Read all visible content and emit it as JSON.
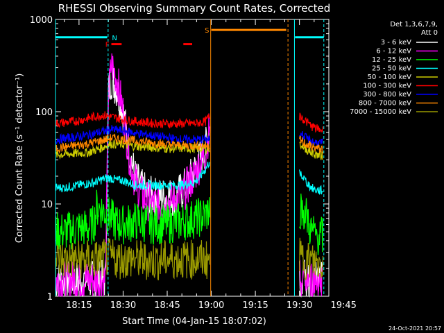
{
  "chart_data": {
    "type": "line",
    "title": "RHESSI Observing Summary Count Rates, Corrected",
    "xlabel": "Start Time (04-Jan-15 18:07:02)",
    "ylabel": "Corrected Count Rate (s⁻¹ detector⁻¹)",
    "ylog": true,
    "ylim": [
      1,
      1000
    ],
    "xlim_minutes": [
      7.0,
      100.0
    ],
    "x_ticks": [
      {
        "minutes": 15,
        "label": "18:15"
      },
      {
        "minutes": 30,
        "label": "18:30"
      },
      {
        "minutes": 45,
        "label": "18:45"
      },
      {
        "minutes": 60,
        "label": "19:00"
      },
      {
        "minutes": 75,
        "label": "19:15"
      },
      {
        "minutes": 90,
        "label": "19:30"
      },
      {
        "minutes": 105,
        "label": "19:45"
      }
    ],
    "y_ticks": [
      {
        "value": 1,
        "label": "1"
      },
      {
        "value": 10,
        "label": "10"
      },
      {
        "value": 100,
        "label": "100"
      },
      {
        "value": 1000,
        "label": "1000"
      }
    ],
    "timestamp": "24-Oct-2021 20:57",
    "legend_placement": "top-right",
    "legend_header": [
      "Det 1,3,6,7,9,",
      "Att 0"
    ],
    "series": [
      {
        "name": "3 - 6 keV",
        "color": "#ffffff",
        "x": [
          7,
          15,
          20,
          24,
          25,
          26,
          28,
          30,
          32,
          34,
          36,
          38,
          40,
          42,
          44,
          46,
          48,
          50,
          52,
          54,
          56,
          58,
          59,
          59.5
        ],
        "y": [
          1.5,
          1.5,
          1.5,
          1.5,
          160,
          230,
          170,
          100,
          40,
          20,
          15,
          13,
          12,
          12,
          12,
          12,
          12,
          14,
          17,
          22,
          30,
          40,
          55,
          80
        ]
      },
      {
        "name": "6 - 12 keV",
        "color": "#ff00ff",
        "x": [
          7,
          15,
          20,
          24,
          25,
          26,
          28,
          30,
          32,
          34,
          36,
          38,
          40,
          42,
          44,
          46,
          48,
          50,
          52,
          54,
          56,
          58,
          59,
          59.5
        ],
        "y": [
          1.5,
          1.5,
          1.5,
          1.5,
          150,
          330,
          220,
          100,
          35,
          18,
          13,
          11,
          10,
          10,
          10,
          11,
          11,
          12,
          16,
          20,
          27,
          35,
          55,
          75
        ]
      },
      {
        "name": "12 - 25 keV",
        "color": "#00ff00",
        "x": [
          7,
          10,
          15,
          18,
          20,
          21,
          22,
          24,
          26,
          28,
          30,
          35,
          40,
          45,
          50,
          55,
          58,
          59.5
        ],
        "y": [
          5,
          5,
          5.5,
          5.5,
          6,
          9,
          9,
          8,
          7,
          6,
          6,
          6.5,
          6,
          6,
          6.5,
          7,
          7.5,
          9
        ]
      },
      {
        "name": "25 - 50 keV",
        "color": "#00ffff",
        "x": [
          7,
          10,
          15,
          20,
          22,
          24,
          26,
          28,
          30,
          32,
          34,
          36,
          40,
          45,
          50,
          54,
          56,
          58,
          59.5
        ],
        "y": [
          15,
          15,
          16,
          17,
          18,
          19,
          19,
          18,
          18,
          17,
          16,
          16,
          16,
          16,
          16,
          17,
          19,
          24,
          29
        ]
      },
      {
        "name": "50 - 100 keV",
        "color": "#cccc00",
        "x": [
          7,
          12,
          18,
          22,
          26,
          30,
          35,
          40,
          45,
          50,
          55,
          59.5
        ],
        "y": [
          34,
          35,
          36,
          40,
          45,
          44,
          42,
          41,
          40,
          40,
          40,
          40
        ]
      },
      {
        "name": "100 - 300 keV",
        "color": "#ff0000",
        "x": [
          7,
          10,
          15,
          20,
          23,
          26,
          30,
          35,
          40,
          45,
          50,
          55,
          58,
          59.5
        ],
        "y": [
          75,
          76,
          80,
          88,
          92,
          88,
          82,
          78,
          75,
          74,
          74,
          75,
          78,
          90
        ]
      },
      {
        "name": "300 - 800 keV",
        "color": "#0000ff",
        "x": [
          7,
          12,
          18,
          22,
          26,
          30,
          35,
          40,
          45,
          50,
          55,
          59.5
        ],
        "y": [
          50,
          52,
          56,
          60,
          64,
          62,
          58,
          55,
          52,
          50,
          50,
          50
        ]
      },
      {
        "name": "800 - 7000 keV",
        "color": "#ff8800",
        "x": [
          7,
          12,
          18,
          22,
          26,
          30,
          35,
          40,
          45,
          50,
          55,
          59.5
        ],
        "y": [
          40,
          42,
          45,
          48,
          52,
          50,
          48,
          46,
          44,
          43,
          43,
          43
        ]
      },
      {
        "name": "7000 - 15000 keV",
        "color": "#999900",
        "x": [
          7,
          15,
          20,
          25,
          30,
          35,
          40,
          45,
          50,
          55,
          59.5
        ],
        "y": [
          2.5,
          2.5,
          2.5,
          2.6,
          2.5,
          2.5,
          2.4,
          2.5,
          2.5,
          2.5,
          2.5
        ]
      }
    ],
    "series_after": [
      {
        "name": "3 - 6 keV",
        "color": "#ffffff",
        "x": [
          90,
          92,
          94,
          96,
          98
        ],
        "y": [
          1.5,
          1.5,
          1.5,
          1.5,
          1.5
        ]
      },
      {
        "name": "6 - 12 keV",
        "color": "#ff00ff",
        "x": [
          90,
          92,
          94,
          96,
          98
        ],
        "y": [
          1.5,
          1.5,
          1.5,
          1.5,
          1.5
        ]
      },
      {
        "name": "12 - 25 keV",
        "color": "#00ff00",
        "x": [
          90,
          92,
          94,
          96,
          98
        ],
        "y": [
          9,
          8,
          5,
          4.5,
          4.5
        ]
      },
      {
        "name": "25 - 50 keV",
        "color": "#00ffff",
        "x": [
          90,
          92,
          94,
          96,
          98
        ],
        "y": [
          22,
          18,
          15,
          14,
          14
        ]
      },
      {
        "name": "50 - 100 keV",
        "color": "#cccc00",
        "x": [
          90,
          92,
          94,
          96,
          98
        ],
        "y": [
          45,
          40,
          36,
          34,
          33
        ]
      },
      {
        "name": "100 - 300 keV",
        "color": "#ff0000",
        "x": [
          90,
          92,
          94,
          96,
          98
        ],
        "y": [
          90,
          80,
          70,
          65,
          63
        ]
      },
      {
        "name": "300 - 800 keV",
        "color": "#0000ff",
        "x": [
          90,
          92,
          94,
          96,
          98
        ],
        "y": [
          60,
          52,
          48,
          46,
          45
        ]
      },
      {
        "name": "800 - 7000 keV",
        "color": "#ff8800",
        "x": [
          90,
          92,
          94,
          96,
          98
        ],
        "y": [
          50,
          45,
          42,
          40,
          39
        ]
      },
      {
        "name": "7000 - 15000 keV",
        "color": "#999900",
        "x": [
          90,
          92,
          94,
          96,
          98
        ],
        "y": [
          2.6,
          2.5,
          2.4,
          2.3,
          2.3
        ]
      }
    ],
    "vlines": [
      {
        "minutes": 24.9,
        "color": "#00ffff",
        "dash": true
      },
      {
        "minutes": 59.8,
        "color": "#ff8800",
        "dash": false
      },
      {
        "minutes": 86.1,
        "color": "#ff8800",
        "dash": true
      },
      {
        "minutes": 88.3,
        "color": "#00ffff",
        "dash": false
      },
      {
        "minutes": 98.3,
        "color": "#00ffff",
        "dash": true
      },
      {
        "minutes": 7.0,
        "color": "#00ffff",
        "dash": false
      }
    ],
    "bars": [
      {
        "label": "",
        "color": "#00ffff",
        "start": 7.0,
        "end": 24.6,
        "level": 640
      },
      {
        "label": "N",
        "color": "#00ffff",
        "start": 25.2,
        "end": 25.2,
        "level": 640
      },
      {
        "label": "F",
        "color": "#ff0000",
        "start": 26.0,
        "end": 29.5,
        "level": 540
      },
      {
        "label": "",
        "color": "#ff0000",
        "start": 50.5,
        "end": 53.5,
        "level": 540
      },
      {
        "label": "S",
        "color": "#ff8800",
        "start": 60.0,
        "end": 85.5,
        "level": 770
      },
      {
        "label": "",
        "color": "#00ffff",
        "start": 88.5,
        "end": 98.3,
        "level": 640
      }
    ]
  }
}
